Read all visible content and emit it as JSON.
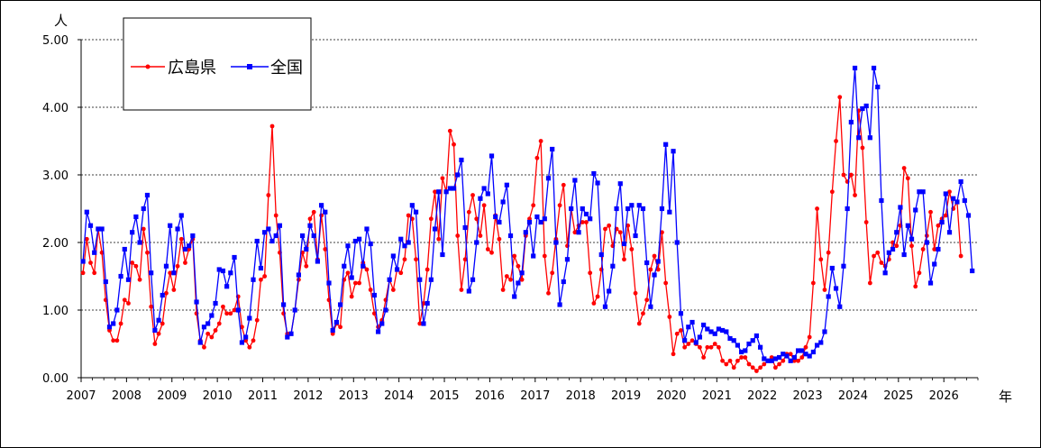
{
  "chart_data": {
    "type": "line",
    "y_unit_label": "人",
    "x_unit_label": "年",
    "ylim": [
      0,
      5
    ],
    "yticks": [
      "0.00",
      "1.00",
      "2.00",
      "3.00",
      "4.00",
      "5.00"
    ],
    "xlim": [
      2007,
      2026.75
    ],
    "xticks": [
      "2007",
      "2008",
      "2009",
      "2010",
      "2011",
      "2012",
      "2013",
      "2014",
      "2015",
      "2016",
      "2017",
      "2018",
      "2019",
      "2020",
      "2021",
      "2022",
      "2023",
      "2024",
      "2025",
      "2026"
    ],
    "grid": "horizontal dashed",
    "legend_position": "top-left",
    "series": [
      {
        "name": "広島県",
        "color": "#ff0000",
        "marker": "circle",
        "values": [
          1.55,
          2.05,
          1.7,
          1.55,
          2.2,
          1.85,
          1.15,
          0.7,
          0.55,
          0.55,
          0.8,
          1.15,
          1.1,
          1.7,
          1.65,
          1.45,
          2.2,
          1.85,
          1.05,
          0.5,
          0.65,
          0.8,
          1.25,
          1.55,
          1.3,
          1.65,
          2.05,
          1.7,
          1.9,
          2.05,
          0.95,
          0.55,
          0.45,
          0.65,
          0.6,
          0.7,
          0.8,
          1.05,
          0.95,
          0.95,
          1.0,
          1.2,
          0.75,
          0.55,
          0.45,
          0.55,
          0.85,
          1.45,
          1.5,
          2.7,
          3.72,
          2.4,
          1.85,
          0.95,
          0.65,
          0.65,
          1.0,
          1.45,
          1.85,
          1.65,
          2.35,
          2.45,
          1.75,
          2.4,
          1.9,
          1.15,
          0.65,
          0.8,
          0.75,
          1.45,
          1.55,
          1.2,
          1.4,
          1.4,
          1.7,
          1.6,
          1.3,
          0.95,
          0.75,
          0.85,
          1.15,
          1.45,
          1.3,
          1.6,
          1.55,
          1.75,
          2.4,
          2.35,
          1.75,
          0.8,
          1.1,
          1.6,
          2.35,
          2.75,
          2.05,
          2.95,
          2.75,
          3.65,
          3.45,
          2.1,
          1.3,
          1.75,
          2.45,
          2.7,
          2.35,
          2.1,
          2.55,
          1.9,
          1.85,
          2.4,
          2.05,
          1.3,
          1.5,
          1.45,
          1.8,
          1.65,
          1.45,
          2.1,
          2.35,
          2.55,
          3.25,
          3.5,
          1.8,
          1.25,
          1.55,
          2.05,
          2.55,
          2.85,
          1.95,
          2.5,
          2.15,
          2.25,
          2.3,
          2.3,
          1.55,
          1.1,
          1.2,
          1.6,
          2.2,
          2.25,
          1.95,
          2.2,
          2.15,
          1.75,
          2.25,
          1.9,
          1.25,
          0.8,
          0.95,
          1.15,
          1.6,
          1.8,
          1.6,
          2.15,
          1.4,
          0.9,
          0.35,
          0.65,
          0.7,
          0.45,
          0.5,
          0.55,
          0.5,
          0.45,
          0.3,
          0.45,
          0.45,
          0.5,
          0.45,
          0.25,
          0.2,
          0.25,
          0.15,
          0.25,
          0.3,
          0.3,
          0.2,
          0.15,
          0.1,
          0.15,
          0.2,
          0.25,
          0.3,
          0.15,
          0.2,
          0.25,
          0.35,
          0.35,
          0.25,
          0.25,
          0.3,
          0.45,
          0.6,
          1.4,
          2.5,
          1.75,
          1.3,
          1.85,
          2.75,
          3.5,
          4.15,
          3.0,
          2.9,
          3.0,
          2.7,
          3.95,
          3.4,
          2.3,
          1.4,
          1.8,
          1.85,
          1.7,
          1.65,
          1.75,
          2.0,
          1.95,
          2.25,
          3.1,
          2.95,
          1.95,
          1.35,
          1.55,
          1.9,
          2.1,
          2.45,
          1.9,
          2.25,
          2.35,
          2.4,
          2.75,
          2.5,
          2.6,
          1.8
        ]
      },
      {
        "name": "全国",
        "color": "#0000ff",
        "marker": "square",
        "values": [
          1.72,
          2.45,
          2.25,
          1.85,
          2.2,
          2.2,
          1.42,
          0.75,
          0.8,
          1.0,
          1.5,
          1.9,
          1.45,
          2.15,
          2.38,
          2.0,
          2.5,
          2.7,
          1.55,
          0.7,
          0.85,
          1.22,
          1.65,
          2.25,
          1.55,
          2.2,
          2.4,
          1.9,
          1.95,
          2.1,
          1.12,
          0.52,
          0.75,
          0.8,
          0.92,
          1.1,
          1.6,
          1.58,
          1.35,
          1.55,
          1.78,
          1.0,
          0.52,
          0.6,
          0.88,
          1.45,
          2.02,
          1.62,
          2.15,
          2.2,
          2.02,
          2.1,
          2.25,
          1.08,
          0.6,
          0.65,
          1.0,
          1.52,
          2.1,
          1.9,
          2.25,
          2.1,
          1.72,
          2.55,
          2.45,
          1.4,
          0.7,
          0.82,
          1.08,
          1.65,
          1.95,
          1.48,
          2.02,
          2.05,
          1.65,
          2.2,
          1.98,
          1.22,
          0.68,
          0.8,
          1.0,
          1.45,
          1.8,
          1.6,
          2.05,
          1.95,
          2.0,
          2.55,
          2.45,
          1.45,
          0.8,
          1.1,
          1.45,
          2.2,
          2.75,
          1.82,
          2.75,
          2.8,
          2.8,
          3.0,
          3.22,
          2.22,
          1.28,
          1.45,
          2.0,
          2.65,
          2.8,
          2.72,
          3.28,
          2.38,
          2.3,
          2.6,
          2.85,
          2.1,
          1.2,
          1.4,
          1.55,
          2.15,
          2.3,
          1.8,
          2.38,
          2.3,
          2.35,
          2.95,
          3.38,
          2.0,
          1.08,
          1.42,
          1.75,
          2.5,
          2.92,
          2.15,
          2.5,
          2.42,
          2.35,
          3.02,
          2.88,
          1.82,
          1.05,
          1.28,
          1.65,
          2.5,
          2.87,
          1.98,
          2.5,
          2.55,
          2.1,
          2.55,
          2.5,
          1.7,
          1.05,
          1.52,
          1.72,
          2.5,
          3.45,
          2.45,
          3.35,
          2.0,
          0.95,
          0.55,
          0.75,
          0.82,
          0.52,
          0.6,
          0.78,
          0.72,
          0.68,
          0.65,
          0.72,
          0.7,
          0.68,
          0.58,
          0.55,
          0.48,
          0.38,
          0.4,
          0.5,
          0.55,
          0.62,
          0.45,
          0.28,
          0.25,
          0.25,
          0.28,
          0.3,
          0.35,
          0.32,
          0.25,
          0.3,
          0.4,
          0.4,
          0.35,
          0.32,
          0.38,
          0.48,
          0.52,
          0.68,
          1.2,
          1.62,
          1.32,
          1.05,
          1.65,
          2.5,
          3.78,
          4.58,
          3.55,
          3.98,
          4.02,
          3.55,
          4.58,
          4.3,
          2.62,
          1.55,
          1.85,
          1.9,
          2.15,
          2.52,
          1.82,
          2.25,
          2.05,
          2.48,
          2.75,
          2.75,
          2.0,
          1.4,
          1.68,
          1.9,
          2.3,
          2.72,
          2.15,
          2.65,
          2.6,
          2.9,
          2.62,
          2.4,
          1.58
        ]
      }
    ]
  }
}
